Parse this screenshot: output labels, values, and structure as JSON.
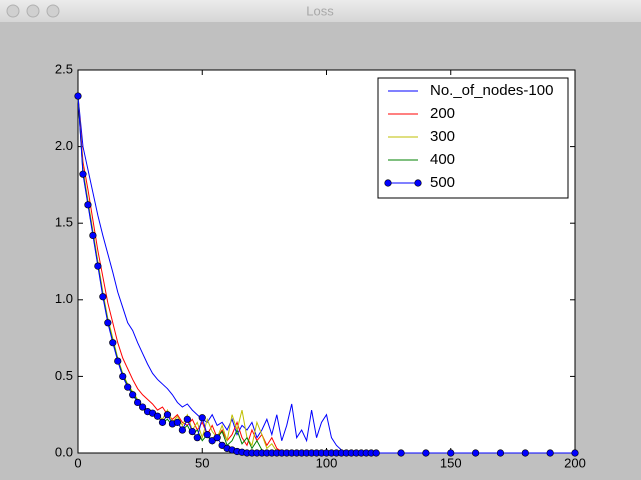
{
  "window_title": "Loss",
  "chart_data": {
    "type": "line",
    "x": [
      0,
      2,
      4,
      6,
      8,
      10,
      12,
      14,
      16,
      18,
      20,
      22,
      24,
      26,
      28,
      30,
      32,
      34,
      36,
      38,
      40,
      42,
      44,
      46,
      48,
      50,
      52,
      54,
      56,
      58,
      60,
      62,
      64,
      66,
      68,
      70,
      72,
      74,
      76,
      78,
      80,
      82,
      84,
      86,
      88,
      90,
      92,
      94,
      96,
      98,
      100,
      102,
      104,
      106,
      108,
      110,
      112,
      114,
      116,
      118,
      120,
      130,
      140,
      150,
      160,
      170,
      180,
      190,
      200
    ],
    "series": [
      {
        "name": "No._of_nodes-100",
        "color": "#0000ff",
        "values": [
          2.33,
          2.0,
          1.85,
          1.7,
          1.55,
          1.42,
          1.3,
          1.18,
          1.05,
          0.95,
          0.85,
          0.8,
          0.72,
          0.65,
          0.58,
          0.52,
          0.48,
          0.45,
          0.42,
          0.38,
          0.33,
          0.3,
          0.32,
          0.28,
          0.25,
          0.22,
          0.2,
          0.25,
          0.18,
          0.2,
          0.15,
          0.22,
          0.12,
          0.18,
          0.15,
          0.2,
          0.1,
          0.15,
          0.22,
          0.12,
          0.25,
          0.08,
          0.18,
          0.32,
          0.1,
          0.15,
          0.08,
          0.28,
          0.1,
          0.2,
          0.25,
          0.1,
          0.05,
          0.02,
          0,
          0,
          0,
          0,
          0,
          0,
          0,
          0,
          0,
          0,
          0,
          0,
          0,
          0,
          0
        ]
      },
      {
        "name": "200",
        "color": "#ff0000",
        "values": [
          2.33,
          1.9,
          1.72,
          1.52,
          1.32,
          1.15,
          0.98,
          0.85,
          0.72,
          0.62,
          0.55,
          0.48,
          0.42,
          0.38,
          0.35,
          0.32,
          0.28,
          0.3,
          0.25,
          0.22,
          0.25,
          0.2,
          0.18,
          0.22,
          0.15,
          0.2,
          0.12,
          0.18,
          0.1,
          0.15,
          0.08,
          0.12,
          0.2,
          0.1,
          0.05,
          0.15,
          0.08,
          0.12,
          0.05,
          0.1,
          0.03,
          0.01,
          0,
          0,
          0,
          0,
          0,
          0,
          0,
          0,
          0,
          0,
          0,
          0,
          0,
          0,
          0,
          0,
          0,
          0,
          0,
          0,
          0,
          0,
          0,
          0,
          0,
          0,
          0
        ]
      },
      {
        "name": "300",
        "color": "#bfbf00",
        "values": [
          2.33,
          1.85,
          1.65,
          1.45,
          1.25,
          1.05,
          0.88,
          0.75,
          0.62,
          0.52,
          0.45,
          0.4,
          0.35,
          0.3,
          0.28,
          0.26,
          0.25,
          0.22,
          0.28,
          0.2,
          0.24,
          0.18,
          0.25,
          0.15,
          0.2,
          0.1,
          0.22,
          0.14,
          0.1,
          0.18,
          0.08,
          0.25,
          0.15,
          0.28,
          0.1,
          0.05,
          0.2,
          0.12,
          0.03,
          0.06,
          0.01,
          0,
          0,
          0,
          0,
          0,
          0,
          0,
          0,
          0,
          0,
          0,
          0,
          0,
          0,
          0,
          0,
          0,
          0,
          0,
          0,
          0,
          0,
          0,
          0,
          0,
          0,
          0,
          0
        ]
      },
      {
        "name": "400",
        "color": "#008000",
        "values": [
          2.33,
          1.83,
          1.63,
          1.43,
          1.23,
          1.03,
          0.86,
          0.73,
          0.61,
          0.51,
          0.44,
          0.39,
          0.34,
          0.3,
          0.27,
          0.25,
          0.24,
          0.2,
          0.22,
          0.18,
          0.2,
          0.15,
          0.18,
          0.12,
          0.15,
          0.08,
          0.12,
          0.06,
          0.1,
          0.14,
          0.05,
          0.08,
          0.15,
          0.06,
          0.1,
          0.03,
          0.08,
          0.02,
          0,
          0,
          0,
          0,
          0,
          0,
          0,
          0,
          0,
          0,
          0,
          0,
          0,
          0,
          0,
          0,
          0,
          0,
          0,
          0,
          0,
          0,
          0,
          0,
          0,
          0,
          0,
          0,
          0,
          0,
          0
        ]
      },
      {
        "name": "500",
        "color": "#0000ff",
        "marker": "o",
        "values": [
          2.33,
          1.82,
          1.62,
          1.42,
          1.22,
          1.02,
          0.85,
          0.72,
          0.6,
          0.5,
          0.43,
          0.38,
          0.33,
          0.3,
          0.27,
          0.26,
          0.24,
          0.2,
          0.25,
          0.19,
          0.2,
          0.15,
          0.22,
          0.14,
          0.1,
          0.23,
          0.12,
          0.08,
          0.1,
          0.05,
          0.03,
          0.02,
          0.01,
          0.005,
          0,
          0,
          0,
          0,
          0,
          0,
          0,
          0,
          0,
          0,
          0,
          0,
          0,
          0,
          0,
          0,
          0,
          0,
          0,
          0,
          0,
          0,
          0,
          0,
          0,
          0,
          0,
          0,
          0,
          0,
          0,
          0,
          0,
          0,
          0
        ]
      }
    ],
    "xlim": [
      0,
      200
    ],
    "xticks": [
      0,
      50,
      100,
      150,
      200
    ],
    "ylim": [
      0,
      2.5
    ],
    "yticks": [
      {
        "value": 0,
        "label": "0.0"
      },
      0.5,
      {
        "value": 1,
        "label": "1.0"
      },
      1.5,
      {
        "value": 2,
        "label": "2.0"
      },
      2.5
    ],
    "legend": "upper right"
  }
}
